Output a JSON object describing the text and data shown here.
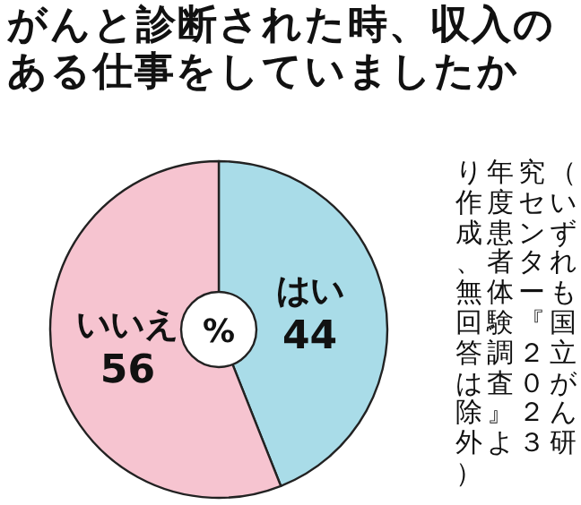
{
  "chart_data": {
    "type": "donut",
    "title": "がんと診断された時、収入のある仕事をしていましたか",
    "categories": [
      "はい",
      "いいえ"
    ],
    "values": [
      44,
      56
    ],
    "colors": [
      "#a9dce8",
      "#f6c4d0"
    ],
    "annotations": [
      "%",
      "（いずれも国立がん研究センター『２０２３年度患者体験調査』より作成、無回答は除外）"
    ],
    "data_labels": true,
    "legend": false
  }
}
